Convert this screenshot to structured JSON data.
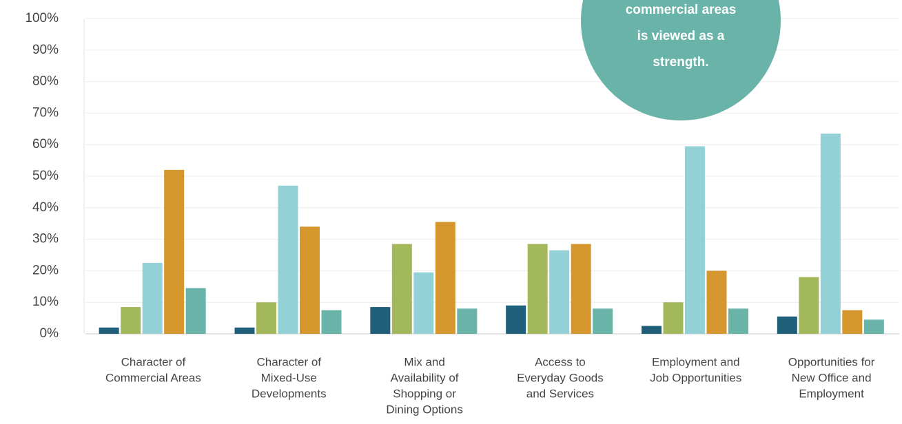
{
  "chart_data": {
    "type": "bar",
    "categories": [
      [
        "Character of",
        "Commercial Areas"
      ],
      [
        "Character of",
        "Mixed-Use",
        "Developments"
      ],
      [
        "Mix and",
        "Availability of",
        "Shopping or",
        "Dining Options"
      ],
      [
        "Access to",
        "Everyday Goods",
        "and Services"
      ],
      [
        "Employment and",
        "Job Opportunities"
      ],
      [
        "Opportunities for",
        "New Office and",
        "Employment"
      ]
    ],
    "series": [
      {
        "color": "#1f5f7a",
        "values": [
          2,
          2,
          8.5,
          9,
          2.5,
          5.5
        ]
      },
      {
        "color": "#a3b85a",
        "values": [
          8.5,
          10,
          28.5,
          28.5,
          10,
          18
        ]
      },
      {
        "color": "#93d1d6",
        "values": [
          22.5,
          47,
          19.5,
          26.5,
          59.5,
          63.5
        ]
      },
      {
        "color": "#d4962d",
        "values": [
          52,
          34,
          35.5,
          28.5,
          20,
          7.5
        ]
      },
      {
        "color": "#6ab3a8",
        "values": [
          14.5,
          7.5,
          8,
          8,
          8,
          4.5
        ]
      }
    ],
    "ylim": [
      0,
      100
    ],
    "yticks": [
      {
        "value": 0,
        "label": "0%"
      },
      {
        "value": 10,
        "label": "10%"
      },
      {
        "value": 20,
        "label": "20%"
      },
      {
        "value": 30,
        "label": "30%"
      },
      {
        "value": 40,
        "label": "40%"
      },
      {
        "value": 50,
        "label": "50%"
      },
      {
        "value": 60,
        "label": "60%"
      },
      {
        "value": 70,
        "label": "70%"
      },
      {
        "value": 80,
        "label": "80%"
      },
      {
        "value": 90,
        "label": "90%"
      },
      {
        "value": 100,
        "label": "100%"
      }
    ],
    "grid": true,
    "annotation": {
      "color": "#6ab3a8",
      "lines": [
        "commercial areas",
        "is viewed as a",
        "strength."
      ]
    }
  }
}
